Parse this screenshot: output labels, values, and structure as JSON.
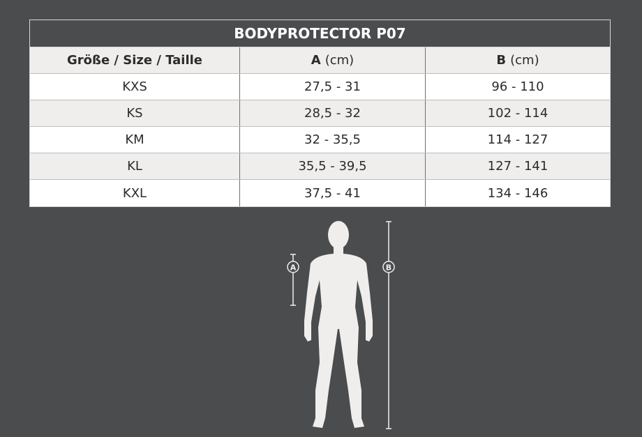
{
  "title": "BODYPROTECTOR P07",
  "header": {
    "size": "Größe / Size / Taille",
    "a_label": "A",
    "b_label": "B",
    "unit": "(cm)"
  },
  "rows": [
    {
      "size": "KXS",
      "a": "27,5 - 31",
      "b": "96 - 110"
    },
    {
      "size": "KS",
      "a": "28,5 - 32",
      "b": "102 - 114"
    },
    {
      "size": "KM",
      "a": "32 - 35,5",
      "b": "114 - 127"
    },
    {
      "size": "KL",
      "a": "35,5 - 39,5",
      "b": "127 - 141"
    },
    {
      "size": "KXL",
      "a": "37,5 - 41",
      "b": "134 - 146"
    }
  ],
  "figure": {
    "marker_a": "A",
    "marker_b": "B"
  },
  "colors": {
    "background": "#4a4c4e",
    "silhouette": "#f0eeec"
  }
}
